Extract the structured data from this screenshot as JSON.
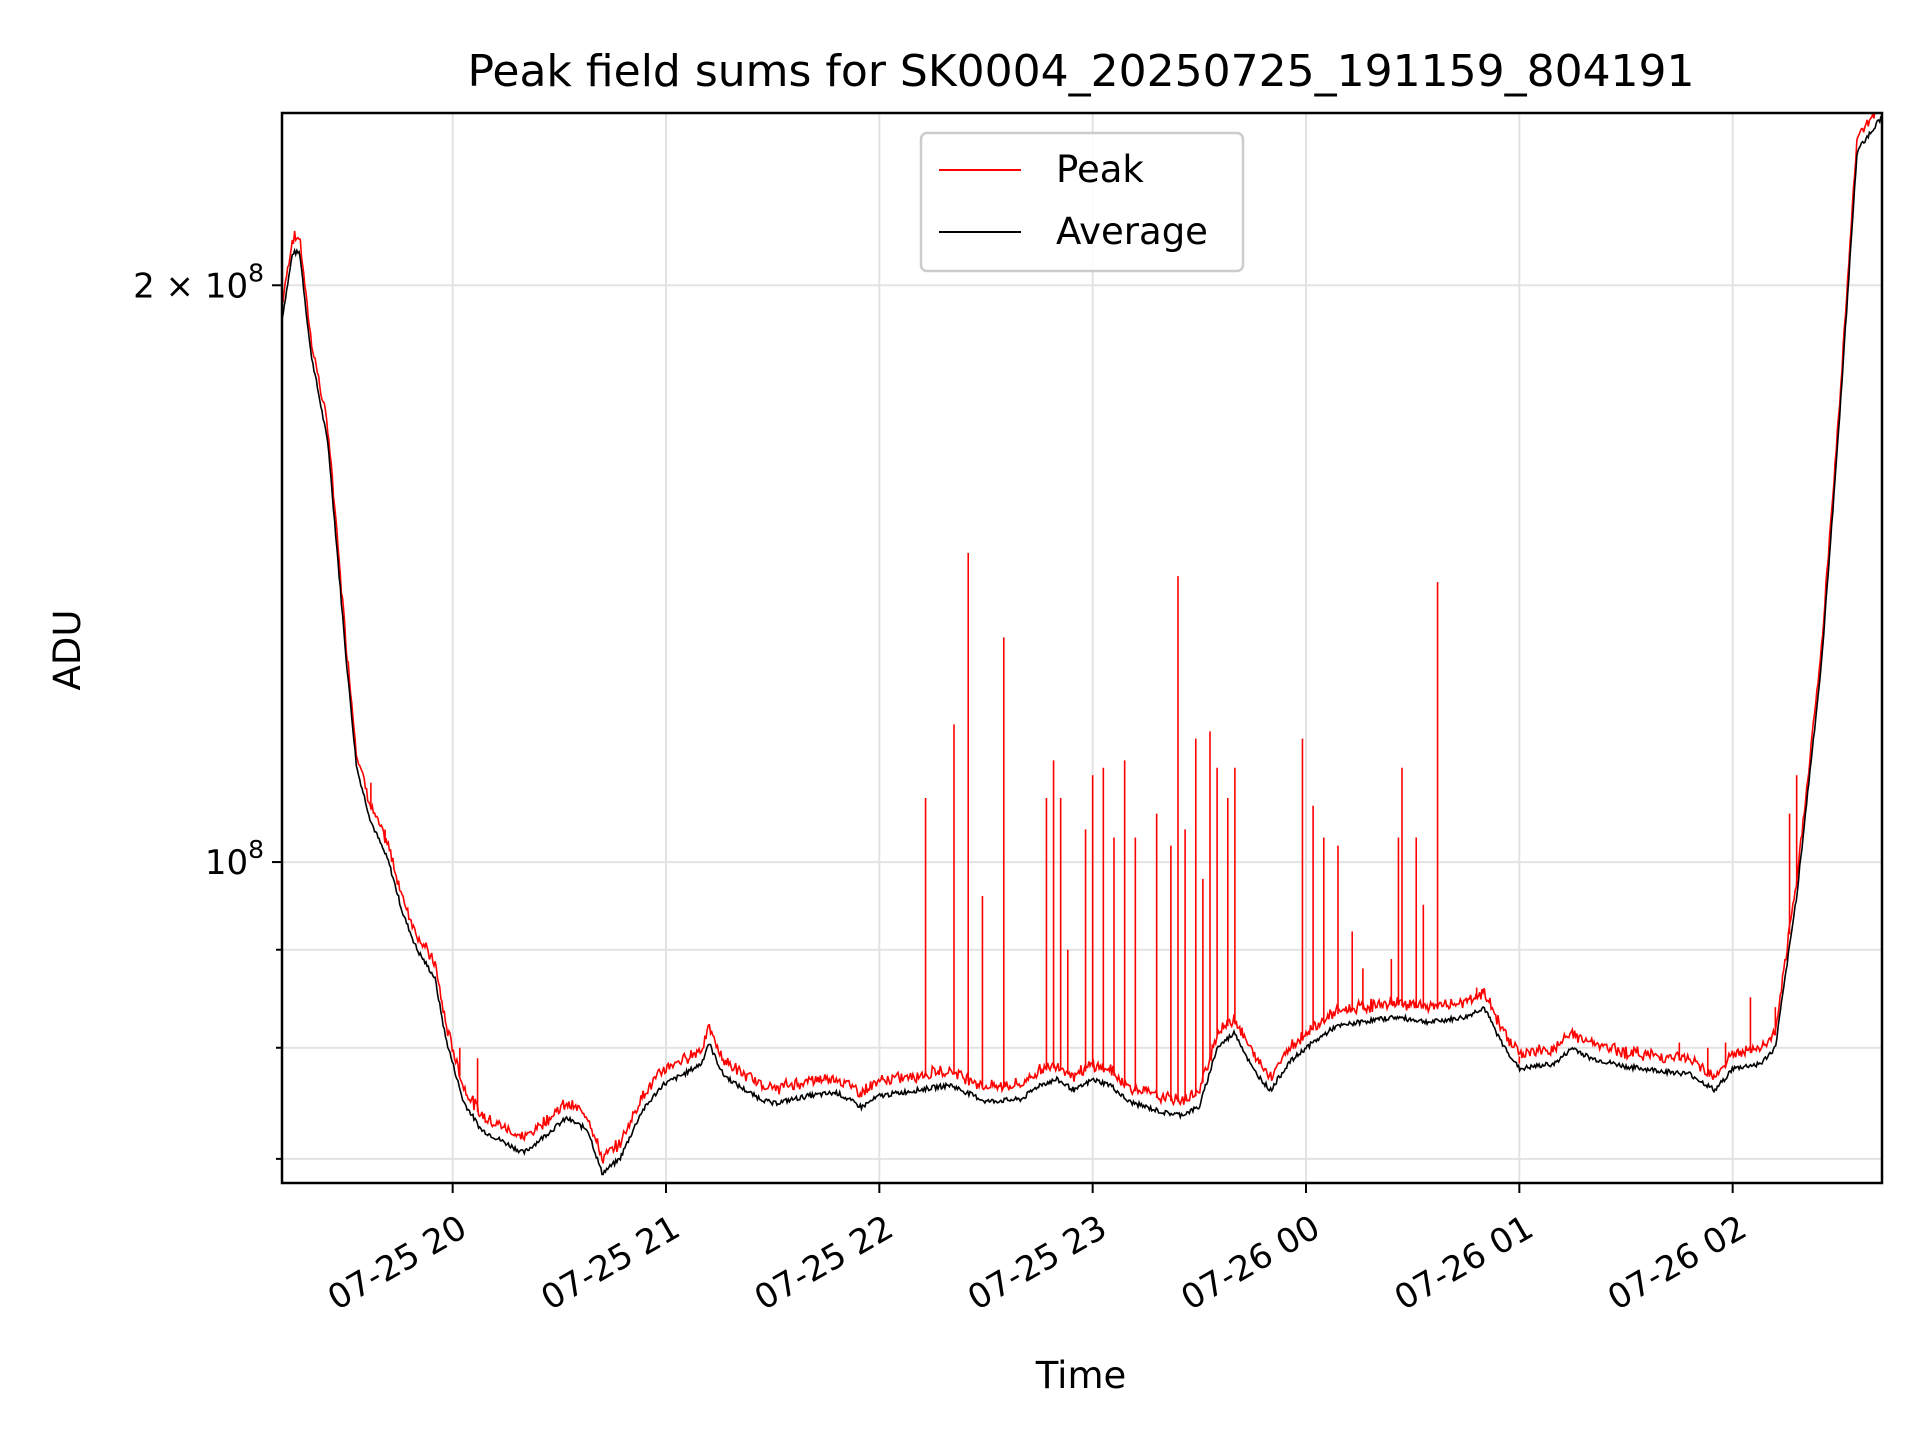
{
  "chart_data": {
    "type": "line",
    "title": "Peak field sums for SK0004_20250725_191159_804191",
    "xlabel": "Time",
    "ylabel": "ADU",
    "yscale": "log",
    "ylim": [
      68000000,
      246000000
    ],
    "xlim": [
      "2025-07-25 19:12",
      "2025-07-26 02:42"
    ],
    "grid": true,
    "legend_position": "top-center",
    "x_ticks": [
      {
        "label": "07-25 20",
        "t": "2025-07-25 20:00"
      },
      {
        "label": "07-25 21",
        "t": "2025-07-25 21:00"
      },
      {
        "label": "07-25 22",
        "t": "2025-07-25 22:00"
      },
      {
        "label": "07-25 23",
        "t": "2025-07-25 23:00"
      },
      {
        "label": "07-26 00",
        "t": "2025-07-26 00:00"
      },
      {
        "label": "07-26 01",
        "t": "2025-07-26 01:00"
      },
      {
        "label": "07-26 02",
        "t": "2025-07-26 02:00"
      }
    ],
    "y_ticks_major": [
      {
        "value": 100000000,
        "base": "10",
        "exp": "8",
        "mult": ""
      },
      {
        "value": 200000000,
        "base": "10",
        "exp": "8",
        "mult": "2 × "
      }
    ],
    "y_ticks_minor": [
      70000000,
      80000000,
      90000000
    ],
    "series": [
      {
        "name": "Average",
        "color": "#000000",
        "points": [
          [
            "2025-07-25 19:12",
            192000000
          ],
          [
            "2025-07-25 19:15",
            208000000
          ],
          [
            "2025-07-25 19:17",
            208000000
          ],
          [
            "2025-07-25 19:20",
            185000000
          ],
          [
            "2025-07-25 19:25",
            165000000
          ],
          [
            "2025-07-25 19:30",
            128000000
          ],
          [
            "2025-07-25 19:33",
            112000000
          ],
          [
            "2025-07-25 19:37",
            105000000
          ],
          [
            "2025-07-25 19:42",
            100000000
          ],
          [
            "2025-07-25 19:46",
            94000000
          ],
          [
            "2025-07-25 19:50",
            90000000
          ],
          [
            "2025-07-25 19:55",
            87000000
          ],
          [
            "2025-07-25 19:58",
            81000000
          ],
          [
            "2025-07-25 20:03",
            75000000
          ],
          [
            "2025-07-25 20:08",
            72500000
          ],
          [
            "2025-07-25 20:14",
            71500000
          ],
          [
            "2025-07-25 20:20",
            70500000
          ],
          [
            "2025-07-25 20:26",
            72000000
          ],
          [
            "2025-07-25 20:32",
            73500000
          ],
          [
            "2025-07-25 20:38",
            72500000
          ],
          [
            "2025-07-25 20:42",
            68800000
          ],
          [
            "2025-07-25 20:47",
            70000000
          ],
          [
            "2025-07-25 20:53",
            74000000
          ],
          [
            "2025-07-25 20:59",
            76500000
          ],
          [
            "2025-07-25 21:05",
            77500000
          ],
          [
            "2025-07-25 21:10",
            78500000
          ],
          [
            "2025-07-25 21:12",
            80500000
          ],
          [
            "2025-07-25 21:16",
            77500000
          ],
          [
            "2025-07-25 21:20",
            76500000
          ],
          [
            "2025-07-25 21:25",
            75500000
          ],
          [
            "2025-07-25 21:30",
            74800000
          ],
          [
            "2025-07-25 21:40",
            75500000
          ],
          [
            "2025-07-25 21:48",
            75800000
          ],
          [
            "2025-07-25 21:55",
            74500000
          ],
          [
            "2025-07-25 22:00",
            75500000
          ],
          [
            "2025-07-25 22:10",
            76000000
          ],
          [
            "2025-07-25 22:20",
            76500000
          ],
          [
            "2025-07-25 22:30",
            75000000
          ],
          [
            "2025-07-25 22:40",
            75200000
          ],
          [
            "2025-07-25 22:45",
            76500000
          ],
          [
            "2025-07-25 22:50",
            77000000
          ],
          [
            "2025-07-25 22:55",
            76000000
          ],
          [
            "2025-07-25 23:00",
            77000000
          ],
          [
            "2025-07-25 23:05",
            76500000
          ],
          [
            "2025-07-25 23:10",
            75000000
          ],
          [
            "2025-07-25 23:15",
            74500000
          ],
          [
            "2025-07-25 23:20",
            74000000
          ],
          [
            "2025-07-25 23:25",
            73800000
          ],
          [
            "2025-07-25 23:30",
            74500000
          ],
          [
            "2025-07-25 23:35",
            80000000
          ],
          [
            "2025-07-25 23:40",
            81500000
          ],
          [
            "2025-07-25 23:45",
            78000000
          ],
          [
            "2025-07-25 23:50",
            76000000
          ],
          [
            "2025-07-25 23:55",
            78500000
          ],
          [
            "2025-07-26 00:00",
            80000000
          ],
          [
            "2025-07-26 00:08",
            82000000
          ],
          [
            "2025-07-26 00:15",
            82500000
          ],
          [
            "2025-07-26 00:25",
            83000000
          ],
          [
            "2025-07-26 00:35",
            82500000
          ],
          [
            "2025-07-26 00:45",
            83000000
          ],
          [
            "2025-07-26 00:50",
            84000000
          ],
          [
            "2025-07-26 00:55",
            80500000
          ],
          [
            "2025-07-26 01:00",
            78000000
          ],
          [
            "2025-07-26 01:10",
            78500000
          ],
          [
            "2025-07-26 01:15",
            80000000
          ],
          [
            "2025-07-26 01:20",
            79000000
          ],
          [
            "2025-07-26 01:30",
            78200000
          ],
          [
            "2025-07-26 01:40",
            77800000
          ],
          [
            "2025-07-26 01:48",
            77500000
          ],
          [
            "2025-07-26 01:55",
            76000000
          ],
          [
            "2025-07-26 02:00",
            78000000
          ],
          [
            "2025-07-26 02:08",
            78500000
          ],
          [
            "2025-07-26 02:12",
            80000000
          ],
          [
            "2025-07-26 02:18",
            96000000
          ],
          [
            "2025-07-26 02:25",
            127000000
          ],
          [
            "2025-07-26 02:30",
            170000000
          ],
          [
            "2025-07-26 02:35",
            235000000
          ],
          [
            "2025-07-26 02:42",
            245000000
          ]
        ]
      },
      {
        "name": "Peak",
        "color": "#ff0000",
        "spikes": [
          [
            "2025-07-25 19:37",
            110000000
          ],
          [
            "2025-07-25 19:41",
            104000000
          ],
          [
            "2025-07-25 20:02",
            80000000
          ],
          [
            "2025-07-25 20:07",
            79000000
          ],
          [
            "2025-07-25 22:13",
            108000000
          ],
          [
            "2025-07-25 22:21",
            118000000
          ],
          [
            "2025-07-25 22:25",
            145000000
          ],
          [
            "2025-07-25 22:29",
            96000000
          ],
          [
            "2025-07-25 22:35",
            131000000
          ],
          [
            "2025-07-25 22:47",
            108000000
          ],
          [
            "2025-07-25 22:49",
            113000000
          ],
          [
            "2025-07-25 22:51",
            108000000
          ],
          [
            "2025-07-25 22:53",
            90000000
          ],
          [
            "2025-07-25 22:58",
            104000000
          ],
          [
            "2025-07-25 23:00",
            111000000
          ],
          [
            "2025-07-25 23:03",
            112000000
          ],
          [
            "2025-07-25 23:06",
            103000000
          ],
          [
            "2025-07-25 23:09",
            113000000
          ],
          [
            "2025-07-25 23:12",
            103000000
          ],
          [
            "2025-07-25 23:18",
            106000000
          ],
          [
            "2025-07-25 23:22",
            102000000
          ],
          [
            "2025-07-25 23:24",
            141000000
          ],
          [
            "2025-07-25 23:26",
            104000000
          ],
          [
            "2025-07-25 23:29",
            116000000
          ],
          [
            "2025-07-25 23:31",
            98000000
          ],
          [
            "2025-07-25 23:33",
            117000000
          ],
          [
            "2025-07-25 23:35",
            112000000
          ],
          [
            "2025-07-25 23:38",
            108000000
          ],
          [
            "2025-07-25 23:40",
            112000000
          ],
          [
            "2025-07-25 23:59",
            116000000
          ],
          [
            "2025-07-26 00:02",
            107000000
          ],
          [
            "2025-07-26 00:05",
            103000000
          ],
          [
            "2025-07-26 00:09",
            102000000
          ],
          [
            "2025-07-26 00:13",
            92000000
          ],
          [
            "2025-07-26 00:16",
            88000000
          ],
          [
            "2025-07-26 00:24",
            89000000
          ],
          [
            "2025-07-26 00:26",
            103000000
          ],
          [
            "2025-07-26 00:27",
            112000000
          ],
          [
            "2025-07-26 00:31",
            103000000
          ],
          [
            "2025-07-26 00:33",
            95000000
          ],
          [
            "2025-07-26 00:37",
            140000000
          ],
          [
            "2025-07-26 00:48",
            86000000
          ],
          [
            "2025-07-26 01:00",
            78500000
          ],
          [
            "2025-07-26 01:15",
            81500000
          ],
          [
            "2025-07-26 01:45",
            80500000
          ],
          [
            "2025-07-26 01:53",
            80000000
          ],
          [
            "2025-07-26 01:58",
            80500000
          ],
          [
            "2025-07-26 02:05",
            85000000
          ],
          [
            "2025-07-26 02:12",
            84000000
          ],
          [
            "2025-07-26 02:16",
            106000000
          ],
          [
            "2025-07-26 02:18",
            111000000
          ]
        ]
      }
    ]
  }
}
